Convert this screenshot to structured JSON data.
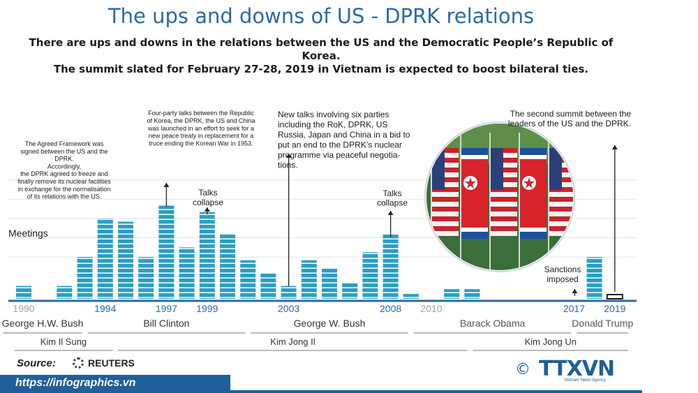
{
  "header": {
    "title": "The ups and downs of US - DPRK relations",
    "intro_line1": "There are ups and downs in the relations between the US and the Democratic People’s Republic of",
    "intro_line2": "Korea.",
    "intro_line3": "The summit slated for February 27-28, 2019 in Vietnam is expected to boost bilateral ties."
  },
  "chart_data": {
    "type": "bar",
    "ylabel": "Meetings",
    "ylim": [
      0,
      5
    ],
    "grid": true,
    "x": [
      1990,
      1991,
      1992,
      1993,
      1994,
      1995,
      1996,
      1997,
      1998,
      1999,
      2000,
      2001,
      2002,
      2003,
      2004,
      2005,
      2006,
      2007,
      2008,
      2009,
      2010,
      2011,
      2012,
      2013,
      2014,
      2015,
      2016,
      2017,
      2018,
      2019
    ],
    "values": [
      0.4,
      0,
      0.4,
      1.3,
      2.5,
      2.4,
      1.3,
      2.9,
      1.6,
      2.7,
      2.0,
      1.2,
      0.8,
      0.4,
      1.2,
      0.95,
      0.5,
      1.45,
      2.0,
      0.15,
      0,
      0.3,
      0.3,
      0,
      0,
      0,
      0,
      0,
      1.3,
      0.15
    ],
    "highlight_years": [
      1994,
      1997,
      1999,
      2003,
      2008,
      2017,
      2019
    ],
    "tick_labels": [
      {
        "year": 1990,
        "label": "1990",
        "emphasis": false
      },
      {
        "year": 1994,
        "label": "1994",
        "emphasis": true
      },
      {
        "year": 1997,
        "label": "1997",
        "emphasis": true
      },
      {
        "year": 1999,
        "label": "1999",
        "emphasis": true
      },
      {
        "year": 2003,
        "label": "2003",
        "emphasis": true
      },
      {
        "year": 2008,
        "label": "2008",
        "emphasis": true
      },
      {
        "year": 2010,
        "label": "2010",
        "emphasis": false
      },
      {
        "year": 2017,
        "label": "2017",
        "emphasis": true
      },
      {
        "year": 2019,
        "label": "2019",
        "emphasis": true
      }
    ],
    "annotations": [
      {
        "year": 1994,
        "lines": [
          "The  Agreed Framework was",
          "signed between the US and the",
          "DPRK.",
          "Accordingly,",
          "the DPRK agreed to freeze and",
          "finally remove its nuclear facilities",
          "in exchange for the normalisation",
          "of its relations with the US."
        ]
      },
      {
        "year": 1997,
        "lines": [
          "Four-party talks between the Republic",
          "of Korea, the DPRK, the US and China",
          "was launched in an effort to seek for a",
          "new peace treaty in replacement for a",
          "truce ending the Korean War in 1953."
        ]
      },
      {
        "year": 1999,
        "lines": [
          "Talks",
          "collapse"
        ]
      },
      {
        "year": 2003,
        "lines": [
          "New talks involving six parties",
          "including the RoK, DPRK, US",
          "Russia, Japan and China in a bid to",
          "put an end to the DPRK’s nuclear",
          "programme via peaceful negotia-",
          "tions."
        ]
      },
      {
        "year": 2008,
        "lines": [
          "Talks",
          "collapse"
        ]
      },
      {
        "year": 2017,
        "lines": [
          "Sanctions",
          "imposed"
        ]
      },
      {
        "year": 2019,
        "lines": [
          "The second summit between the",
          "leaders of the US and the DPRK."
        ]
      }
    ],
    "us_presidents": [
      {
        "name": "George H.W. Bush",
        "from": 1989.4,
        "to": 1993
      },
      {
        "name": "Bill Clinton",
        "from": 1993,
        "to": 2001
      },
      {
        "name": "George W. Bush",
        "from": 2001,
        "to": 2009
      },
      {
        "name": "Barack Obama",
        "from": 2009,
        "to": 2017
      },
      {
        "name": "Donald Trump",
        "from": 2017,
        "to": 2019.8
      }
    ],
    "dprk_leaders": [
      {
        "name": "Kim Il Sung",
        "from": 1989.4,
        "to": 1994.5
      },
      {
        "name": "Kim Jong Il",
        "from": 1994.5,
        "to": 2011.9
      },
      {
        "name": "Kim Jong Un",
        "from": 2011.9,
        "to": 2019.8
      }
    ],
    "colors": {
      "bar": "#2b9fc2",
      "bar_stripe": "#ffffff",
      "axis": "#2a6aa8",
      "muted": "#9aa4ad",
      "text": "#1a1a1a",
      "grid": "#dfe3e6"
    }
  },
  "footer": {
    "source_label": "Source:",
    "source_name": "REUTERS",
    "url": "https://infographics.vn",
    "copyright": "©",
    "agency_logo": "TTXVN",
    "agency_sub": "Vietnam News Agency"
  }
}
